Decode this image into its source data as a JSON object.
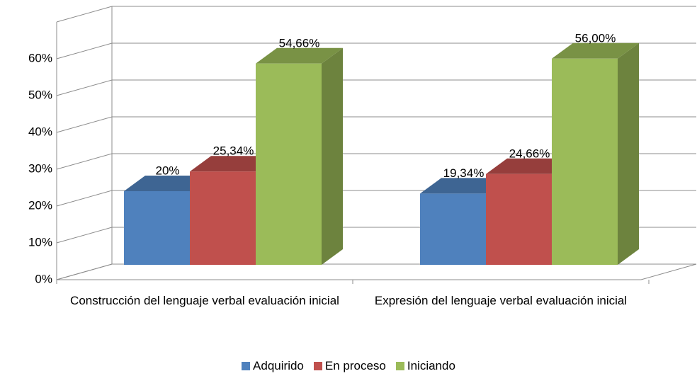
{
  "chart_data": {
    "type": "bar3d",
    "categories": [
      "Construcción del lenguaje verbal evaluación inicial",
      "Expresión del lenguaje verbal evaluación inicial"
    ],
    "series": [
      {
        "name": "Adquirido",
        "color": "#4f81bd",
        "values": [
          20,
          19.34
        ],
        "value_labels": [
          "20%",
          "19,34%"
        ]
      },
      {
        "name": "En proceso",
        "color": "#c0504d",
        "values": [
          25.34,
          24.66
        ],
        "value_labels": [
          "25,34%",
          "24,66%"
        ]
      },
      {
        "name": "Iniciando",
        "color": "#9bbb59",
        "values": [
          54.66,
          56
        ],
        "value_labels": [
          "54,66%",
          "56,00%"
        ]
      }
    ],
    "ylim": [
      0,
      70
    ],
    "yticks": [
      {
        "value": 0,
        "label": "0%"
      },
      {
        "value": 10,
        "label": "10%"
      },
      {
        "value": 20,
        "label": "20%"
      },
      {
        "value": 30,
        "label": "30%"
      },
      {
        "value": 40,
        "label": "40%"
      },
      {
        "value": 50,
        "label": "50%"
      },
      {
        "value": 60,
        "label": "60%"
      }
    ],
    "grid": true,
    "legend": "bottom"
  }
}
